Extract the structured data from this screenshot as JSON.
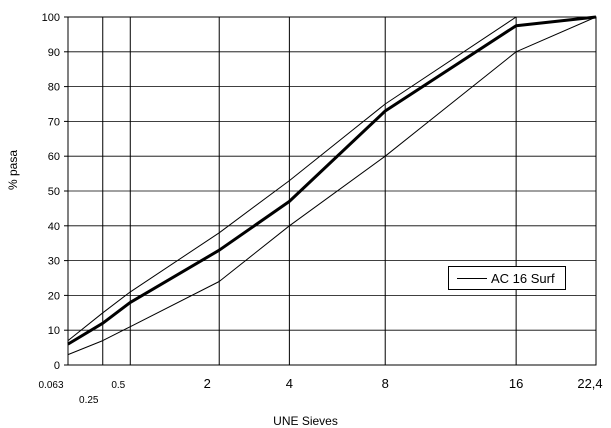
{
  "chart_data": {
    "type": "line",
    "title": "",
    "xlabel": "UNE Sieves",
    "ylabel": "% pasa",
    "ylim": [
      0,
      100
    ],
    "yticks": [
      0,
      10,
      20,
      30,
      40,
      50,
      60,
      70,
      80,
      90,
      100
    ],
    "grid": {
      "horizontal": true,
      "vertical_at_sieves": true
    },
    "legend": {
      "position": "right",
      "entries": [
        "AC 16 Surf"
      ]
    },
    "sieves": [
      {
        "value": 0.063,
        "label": "0.063",
        "row": "upper"
      },
      {
        "value": 0.25,
        "label": "0.25",
        "row": "lower"
      },
      {
        "value": 0.5,
        "label": "0.5",
        "row": "upper"
      },
      {
        "value": 2,
        "label": "2",
        "row": "upper"
      },
      {
        "value": 4,
        "label": "4",
        "row": "upper"
      },
      {
        "value": 8,
        "label": "8",
        "row": "upper"
      },
      {
        "value": 16,
        "label": "16",
        "row": "upper"
      },
      {
        "value": 22.4,
        "label": "22,4",
        "row": "upper"
      }
    ],
    "series": [
      {
        "role": "upper-limit",
        "style": "thin",
        "x": [
          0.063,
          0.25,
          0.5,
          2,
          4,
          8,
          16,
          22.4
        ],
        "y": [
          7,
          15,
          21,
          38,
          53,
          75,
          100,
          100
        ]
      },
      {
        "role": "gradation",
        "style": "thick",
        "x": [
          0.063,
          0.25,
          0.5,
          2,
          4,
          8,
          16,
          22.4
        ],
        "y": [
          6,
          12,
          18,
          33,
          47,
          73,
          97.5,
          100
        ]
      },
      {
        "role": "lower-limit",
        "style": "thin",
        "x": [
          0.063,
          0.25,
          0.5,
          2,
          4,
          8,
          16,
          22.4
        ],
        "y": [
          3,
          7,
          11,
          24,
          40,
          60,
          90,
          100
        ]
      }
    ]
  }
}
